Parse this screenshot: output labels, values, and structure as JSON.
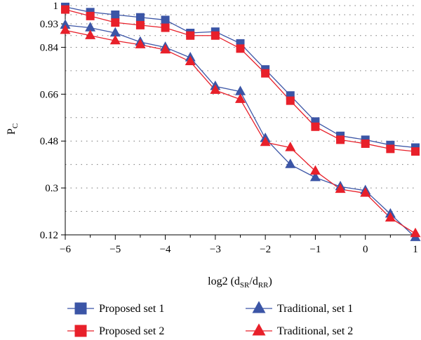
{
  "chart_data": {
    "type": "line",
    "xlabel": {
      "main": "log2 (d",
      "sub1": "SR",
      "mid": "/d",
      "sub2": "RR",
      "end": ")"
    },
    "ylabel": {
      "main": "P",
      "sub": "C"
    },
    "xlim": [
      -6,
      1
    ],
    "ylim": [
      0.12,
      1
    ],
    "x_ticks": [
      -6,
      -5,
      -4,
      -3,
      -2,
      -1,
      0,
      1
    ],
    "x_tick_labels": [
      "−6",
      "−5",
      "−4",
      "−3",
      "−2",
      "−1",
      "0",
      "1"
    ],
    "y_ticks": [
      0.12,
      0.3,
      0.48,
      0.66,
      0.84,
      0.93,
      1
    ],
    "y_tick_labels": [
      "0.12",
      "0.3",
      "0.48",
      "0.66",
      "0.84",
      "0.93",
      "1"
    ],
    "grid": "horizontal dotted",
    "legend_position": "bottom",
    "x": [
      -6,
      -5.5,
      -5,
      -4.5,
      -4,
      -3.5,
      -3,
      -2.5,
      -2,
      -1.5,
      -1,
      -0.5,
      0,
      0.5,
      1
    ],
    "series": [
      {
        "name": "Proposed set 1",
        "marker": "square",
        "color": "#3b55a6",
        "values": [
          0.995,
          0.975,
          0.965,
          0.955,
          0.945,
          0.895,
          0.9,
          0.855,
          0.755,
          0.655,
          0.555,
          0.5,
          0.485,
          0.465,
          0.455
        ]
      },
      {
        "name": "Proposed set 2",
        "marker": "square",
        "color": "#e8202a",
        "values": [
          0.985,
          0.96,
          0.935,
          0.925,
          0.915,
          0.885,
          0.885,
          0.835,
          0.74,
          0.635,
          0.535,
          0.485,
          0.47,
          0.45,
          0.44
        ]
      },
      {
        "name": "Traditional, set 1",
        "marker": "triangle",
        "color": "#3b55a6",
        "values": [
          0.925,
          0.915,
          0.895,
          0.86,
          0.84,
          0.8,
          0.69,
          0.67,
          0.49,
          0.39,
          0.34,
          0.305,
          0.29,
          0.2,
          0.11
        ]
      },
      {
        "name": "Traditional, set 2",
        "marker": "triangle",
        "color": "#e8202a",
        "values": [
          0.905,
          0.885,
          0.865,
          0.85,
          0.83,
          0.785,
          0.675,
          0.64,
          0.475,
          0.455,
          0.365,
          0.295,
          0.28,
          0.185,
          0.125
        ]
      }
    ]
  }
}
